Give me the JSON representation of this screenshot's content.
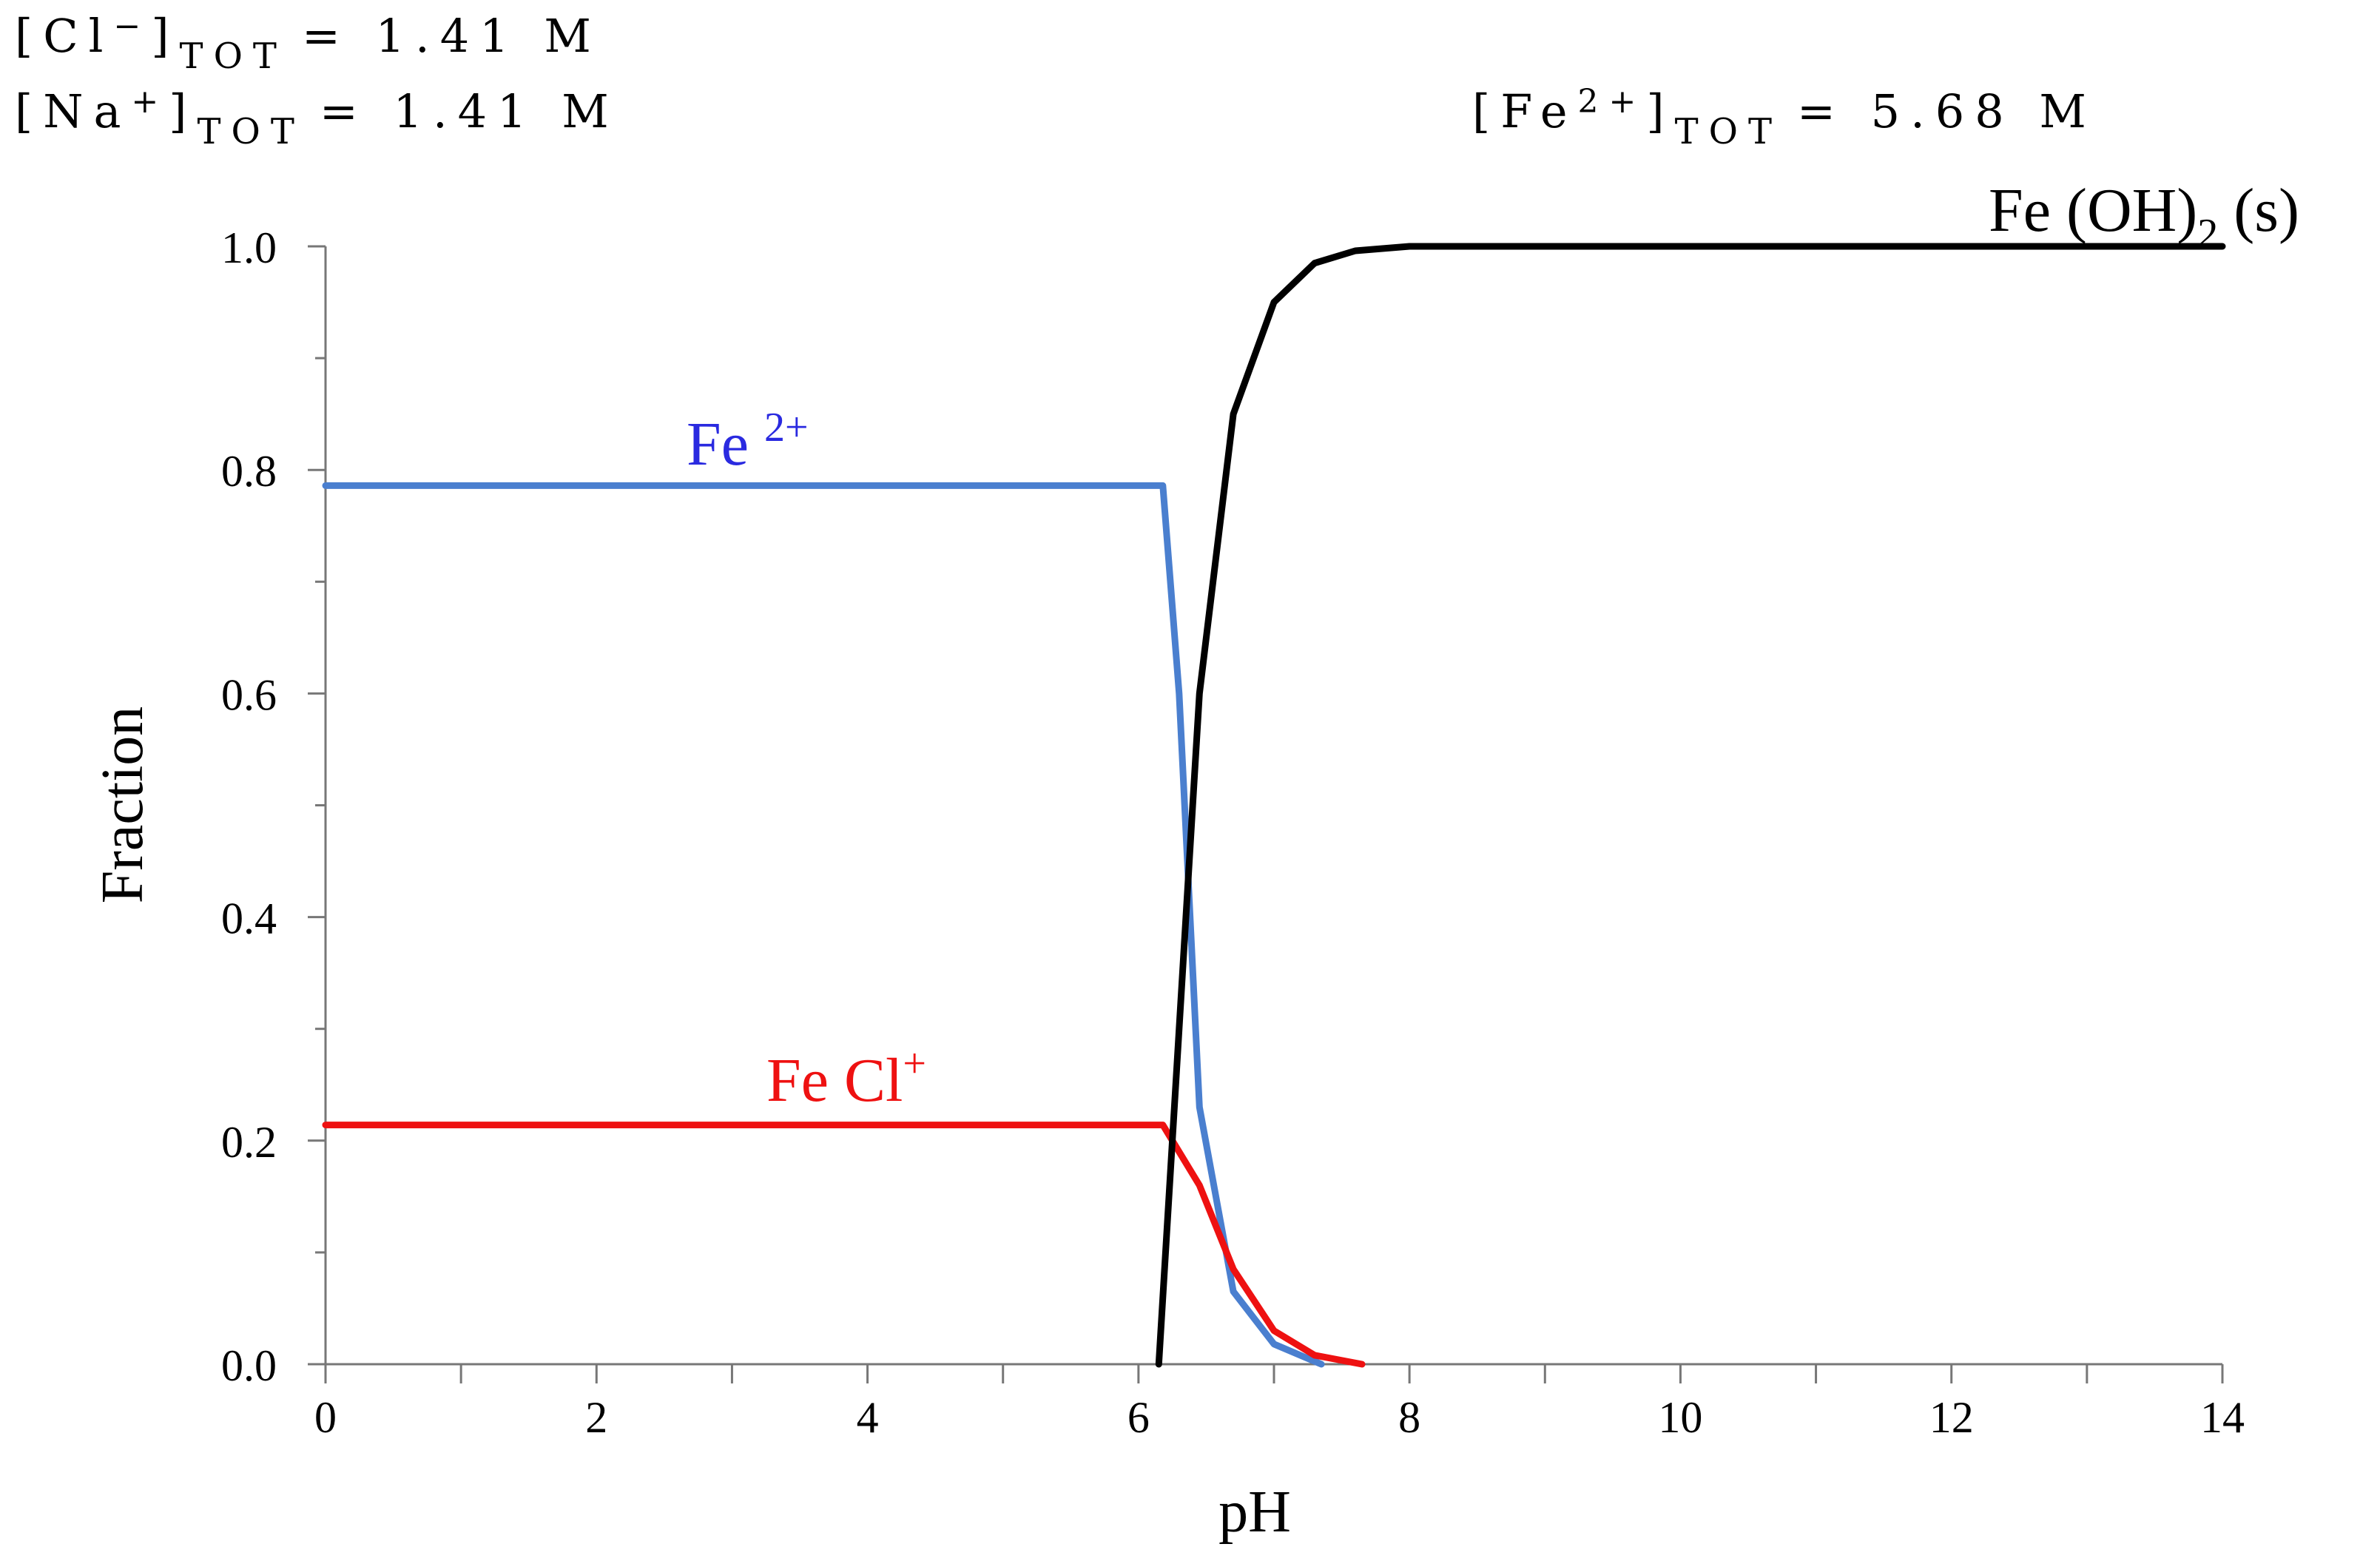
{
  "header": {
    "cl_prefix": "[Cl",
    "cl_sup": "−",
    "cl_close": "]",
    "cl_sub": "TOT",
    "cl_value": "=    1.41 M",
    "na_prefix": "[Na",
    "na_sup": "+",
    "na_close": "]",
    "na_sub": "TOT",
    "na_value": "=    1.41 M",
    "fe_prefix": "[Fe",
    "fe_sup": "2+",
    "fe_close": "]",
    "fe_sub": "TOT",
    "fe_value": "=    5.68 M"
  },
  "chart_data": {
    "type": "line",
    "title": "",
    "xlabel": "pH",
    "ylabel": "Fraction",
    "xlim": [
      0,
      14
    ],
    "ylim": [
      0,
      1.0
    ],
    "x_ticks": [
      "0",
      "2",
      "4",
      "6",
      "8",
      "10",
      "12",
      "14"
    ],
    "y_ticks": [
      "0.0",
      "0.2",
      "0.4",
      "0.6",
      "0.8",
      "1.0"
    ],
    "series": [
      {
        "name": "Fe2+",
        "label_main": "Fe ",
        "label_sup": "2+",
        "color": "#4a7fcf",
        "label_color": "#2a2ae0",
        "x": [
          0,
          6.18,
          6.3,
          6.45,
          6.7,
          7.0,
          7.35
        ],
        "y": [
          0.786,
          0.786,
          0.6,
          0.23,
          0.065,
          0.018,
          0.0
        ]
      },
      {
        "name": "FeCl+",
        "label_main": "Fe Cl",
        "label_sup": "+",
        "color": "#ee1111",
        "label_color": "#ee1111",
        "x": [
          0,
          6.18,
          6.45,
          6.7,
          7.0,
          7.3,
          7.65
        ],
        "y": [
          0.214,
          0.214,
          0.16,
          0.085,
          0.03,
          0.008,
          0.0
        ]
      },
      {
        "name": "Fe(OH)2(s)",
        "label_main": "Fe (OH)",
        "label_sub": "2",
        "label_tail": " (s)",
        "color": "#000000",
        "label_color": "#000000",
        "x": [
          6.15,
          6.3,
          6.45,
          6.7,
          7.0,
          7.3,
          7.6,
          8.0,
          10,
          14
        ],
        "y": [
          0.0,
          0.3,
          0.6,
          0.85,
          0.95,
          0.985,
          0.996,
          1.0,
          1.0,
          1.0
        ]
      }
    ]
  }
}
